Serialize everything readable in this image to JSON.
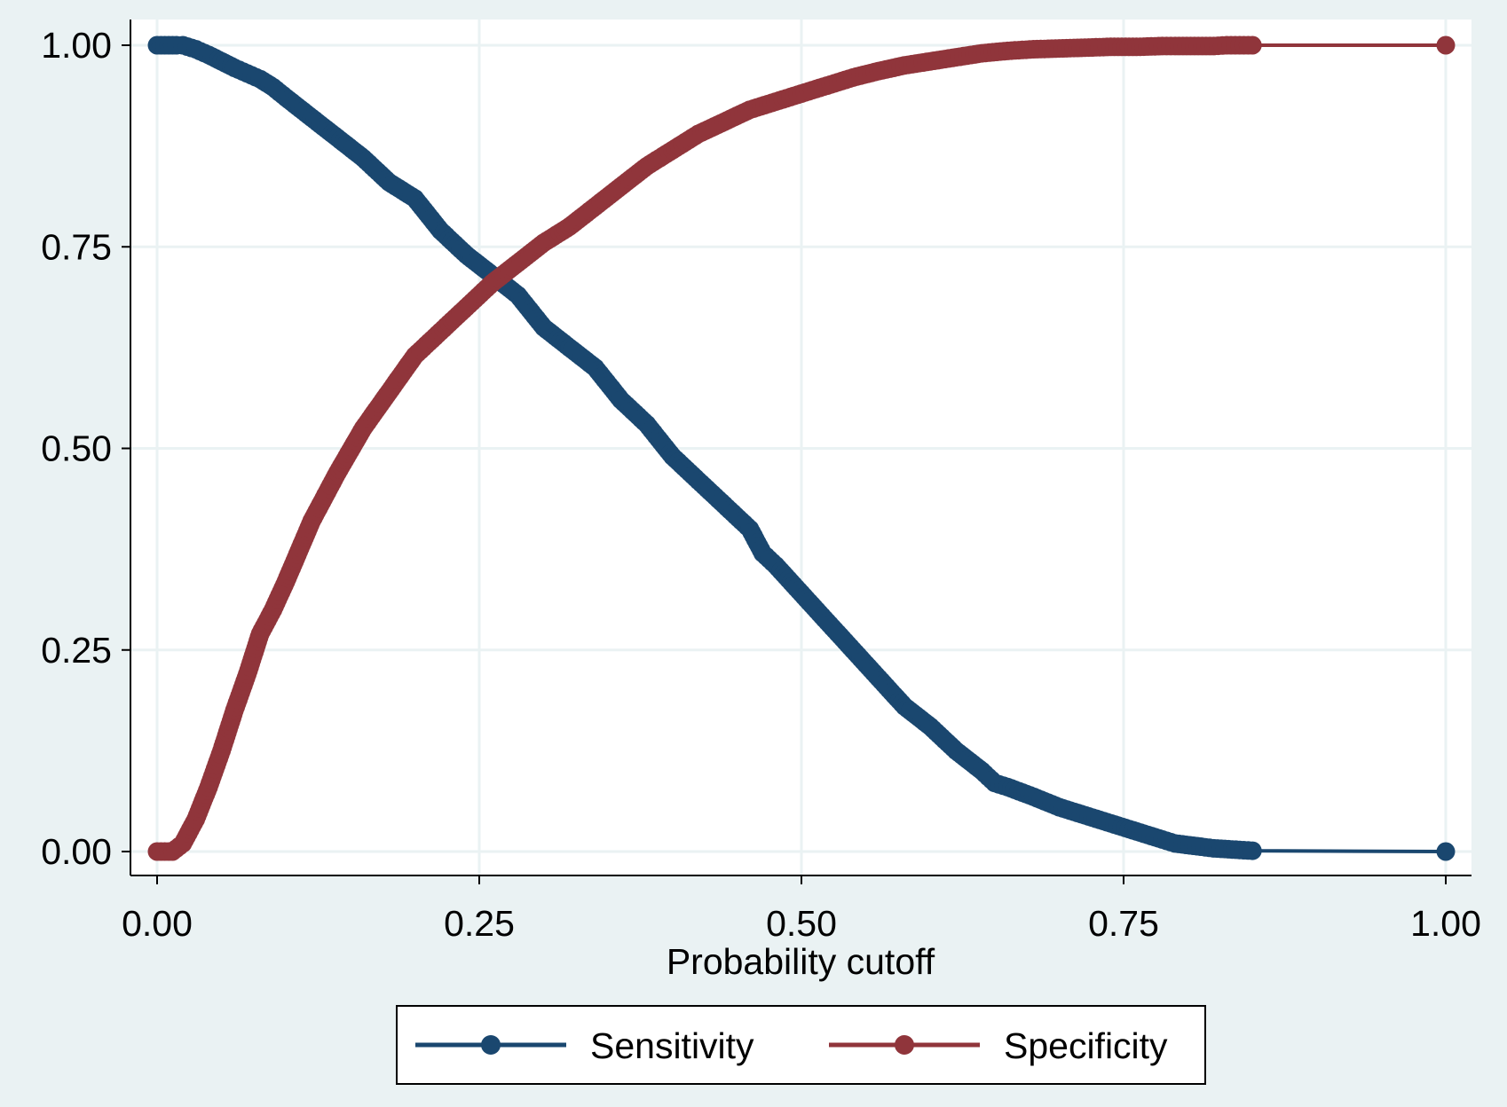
{
  "chart_data": {
    "type": "line",
    "title": "",
    "xlabel": "Probability cutoff",
    "ylabel": "",
    "xlim": [
      0,
      1
    ],
    "ylim": [
      0,
      1
    ],
    "grid": true,
    "legend_position": "bottom",
    "x_ticks": [
      "0.00",
      "0.25",
      "0.50",
      "0.75",
      "1.00"
    ],
    "y_ticks": [
      "0.00",
      "0.25",
      "0.50",
      "0.75",
      "1.00"
    ],
    "series": [
      {
        "name": "Sensitivity",
        "color": "#1a476f",
        "x": [
          0,
          0.015,
          0.02,
          0.03,
          0.04,
          0.05,
          0.06,
          0.07,
          0.08,
          0.09,
          0.1,
          0.12,
          0.14,
          0.16,
          0.18,
          0.2,
          0.22,
          0.24,
          0.26,
          0.28,
          0.3,
          0.32,
          0.34,
          0.36,
          0.38,
          0.4,
          0.42,
          0.44,
          0.46,
          0.47,
          0.48,
          0.5,
          0.52,
          0.54,
          0.56,
          0.58,
          0.6,
          0.62,
          0.64,
          0.65,
          0.66,
          0.68,
          0.7,
          0.72,
          0.74,
          0.76,
          0.78,
          0.79,
          0.81,
          0.82,
          0.84,
          0.85,
          1.0
        ],
        "y": [
          1.0,
          1.0,
          1.0,
          0.995,
          0.988,
          0.98,
          0.972,
          0.965,
          0.958,
          0.948,
          0.935,
          0.91,
          0.885,
          0.86,
          0.83,
          0.81,
          0.77,
          0.74,
          0.715,
          0.69,
          0.65,
          0.625,
          0.6,
          0.56,
          0.53,
          0.49,
          0.46,
          0.43,
          0.4,
          0.37,
          0.355,
          0.32,
          0.285,
          0.25,
          0.215,
          0.18,
          0.155,
          0.125,
          0.1,
          0.085,
          0.08,
          0.068,
          0.055,
          0.045,
          0.035,
          0.025,
          0.015,
          0.01,
          0.006,
          0.004,
          0.002,
          0.001,
          0.0
        ]
      },
      {
        "name": "Specificity",
        "color": "#90353b",
        "x": [
          0,
          0.012,
          0.02,
          0.03,
          0.04,
          0.05,
          0.06,
          0.07,
          0.08,
          0.09,
          0.1,
          0.12,
          0.14,
          0.16,
          0.18,
          0.2,
          0.22,
          0.24,
          0.26,
          0.28,
          0.3,
          0.32,
          0.34,
          0.36,
          0.38,
          0.4,
          0.42,
          0.44,
          0.46,
          0.48,
          0.5,
          0.52,
          0.54,
          0.56,
          0.58,
          0.6,
          0.62,
          0.64,
          0.66,
          0.68,
          0.7,
          0.72,
          0.74,
          0.76,
          0.78,
          0.79,
          0.82,
          0.83,
          0.84,
          0.85,
          1.0
        ],
        "y": [
          0.0,
          0.0,
          0.01,
          0.04,
          0.08,
          0.125,
          0.175,
          0.22,
          0.27,
          0.3,
          0.335,
          0.41,
          0.47,
          0.525,
          0.57,
          0.615,
          0.645,
          0.675,
          0.705,
          0.73,
          0.755,
          0.775,
          0.8,
          0.825,
          0.85,
          0.87,
          0.89,
          0.905,
          0.92,
          0.93,
          0.94,
          0.95,
          0.96,
          0.968,
          0.975,
          0.98,
          0.985,
          0.99,
          0.993,
          0.995,
          0.996,
          0.997,
          0.998,
          0.998,
          0.999,
          0.999,
          0.999,
          1.0,
          1.0,
          1.0,
          1.0
        ]
      }
    ]
  }
}
